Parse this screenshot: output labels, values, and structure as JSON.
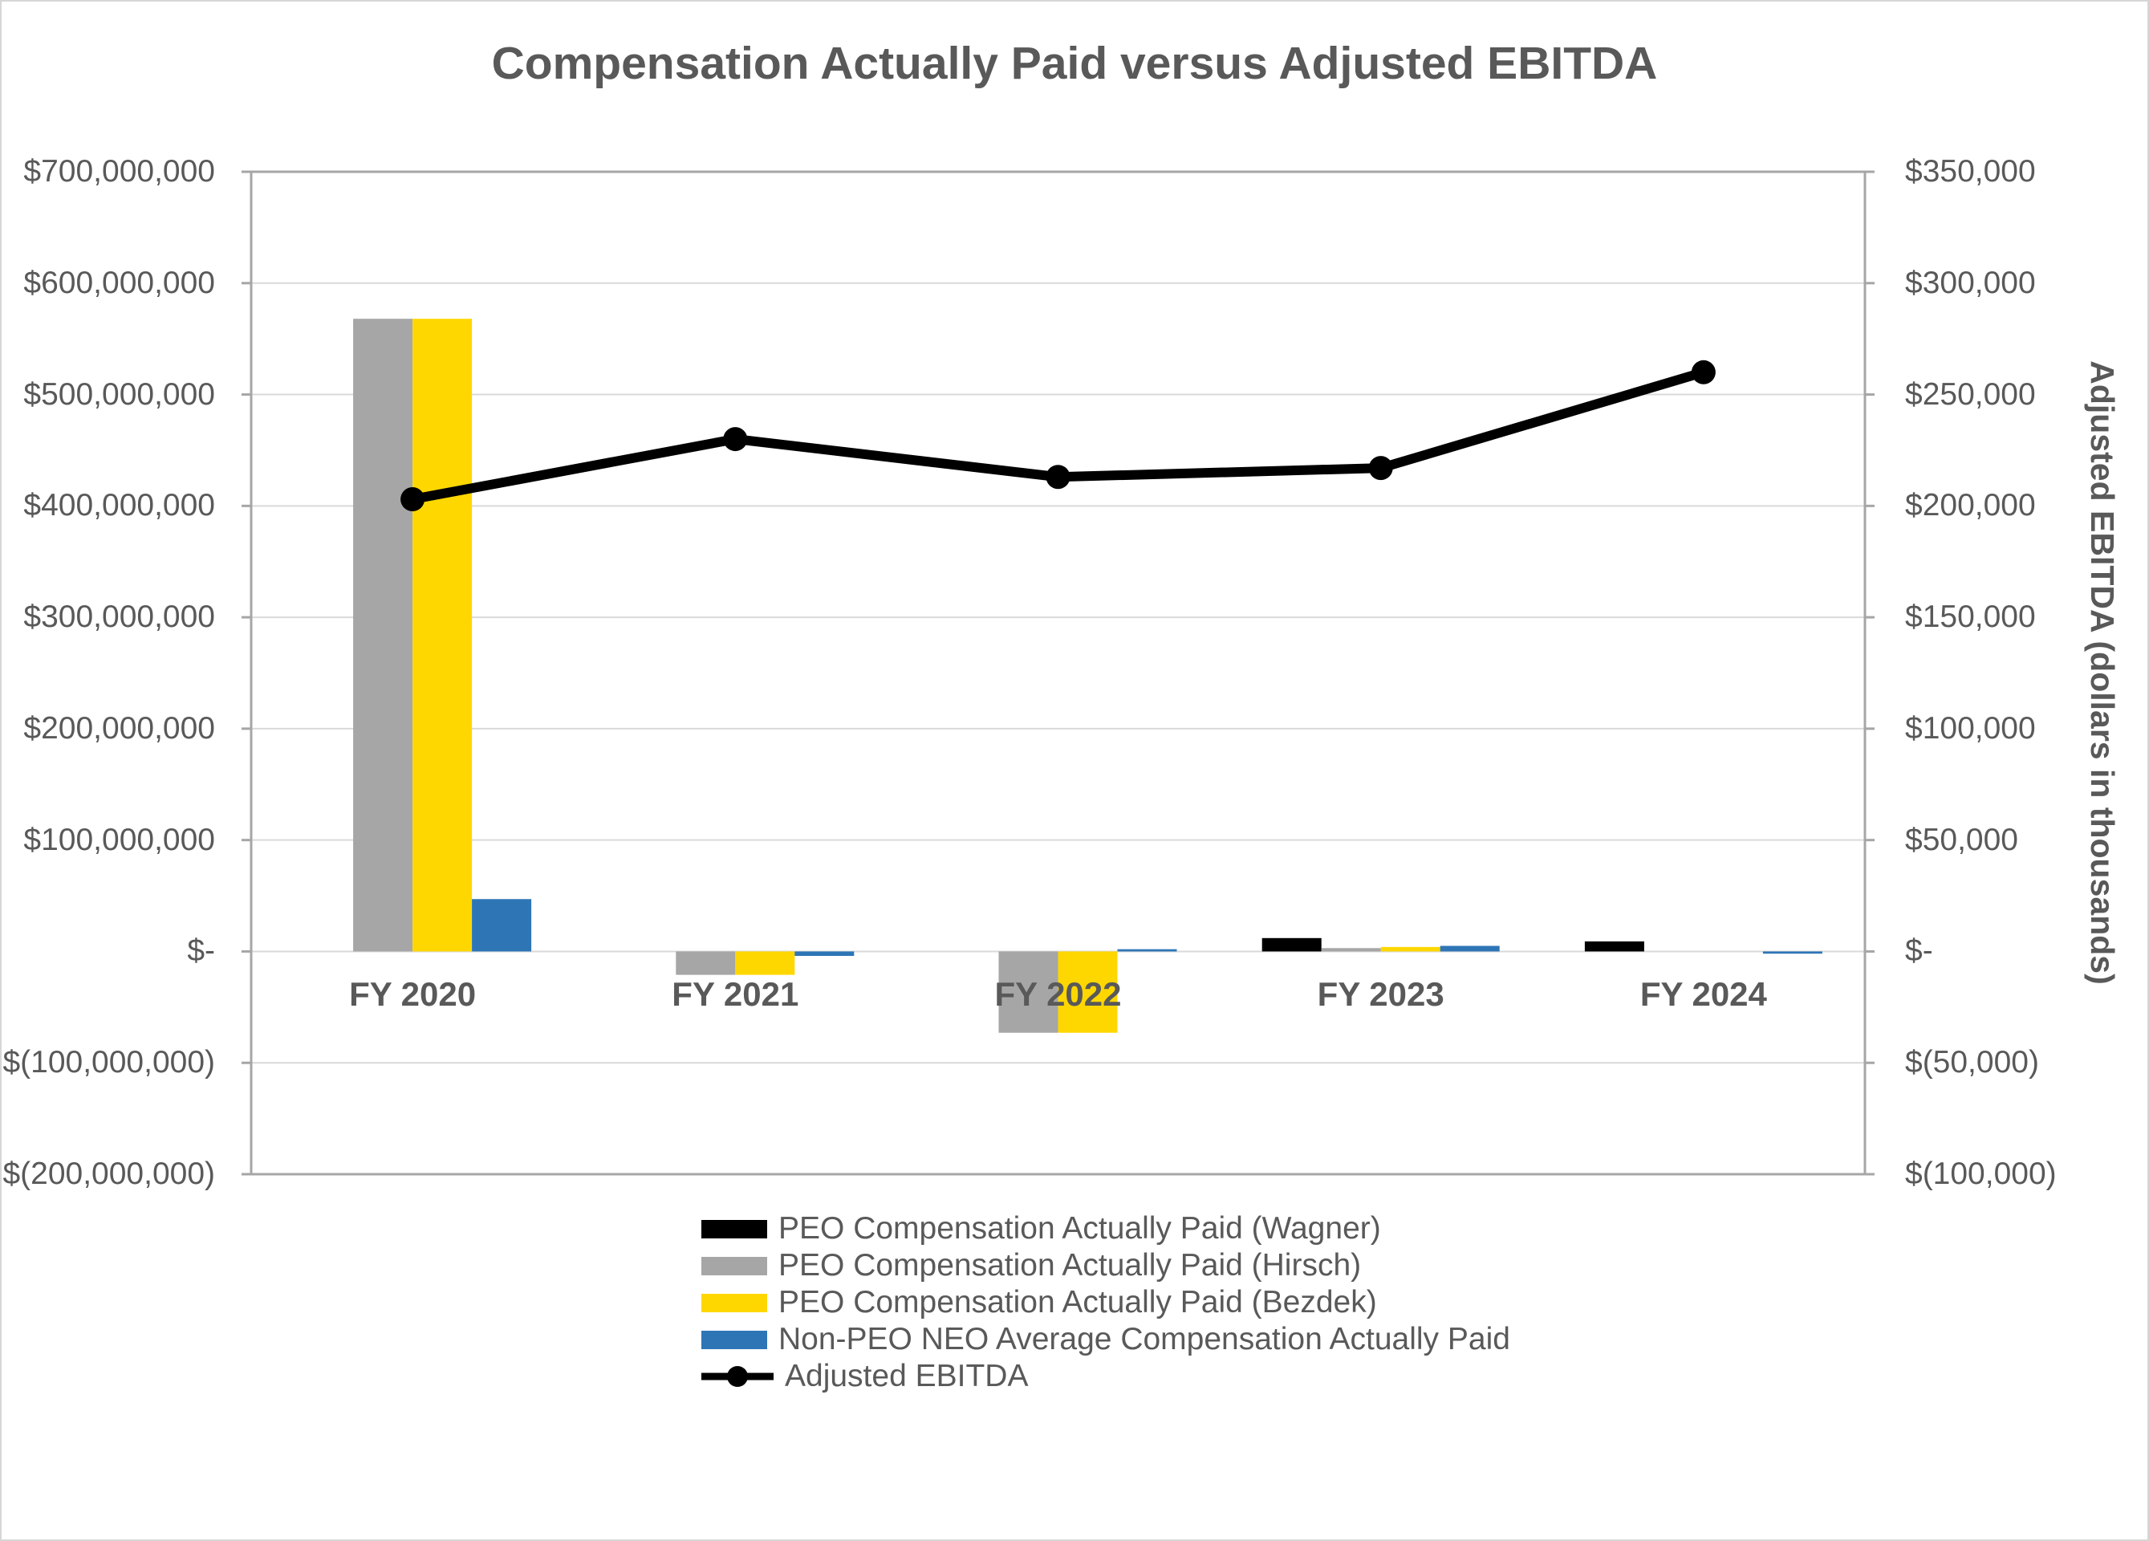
{
  "title": "Compensation Actually Paid versus Adjusted EBITDA",
  "right_axis_title": "Adjusted EBITDA (dollars in thousands)",
  "colors": {
    "text": "#595959",
    "gridline": "#d9d9d9",
    "plot_border": "#a6a6a6",
    "wagner_black": "#000000",
    "hirsch_gray": "#a6a6a6",
    "bezdek_yellow": "#ffd700",
    "non_peo_blue": "#2e75b6",
    "ebitda_line": "#000000"
  },
  "chart_data": {
    "type": "bar+line combo",
    "title": "Compensation Actually Paid versus Adjusted EBITDA",
    "categories": [
      "FY 2020",
      "FY 2021",
      "FY 2022",
      "FY 2023",
      "FY 2024"
    ],
    "grid": true,
    "legend_position": "bottom",
    "left_axis": {
      "min": -200000000,
      "max": 700000000,
      "step": 100000000,
      "tick_labels": [
        "$700,000,000",
        "$600,000,000",
        "$500,000,000",
        "$400,000,000",
        "$300,000,000",
        "$200,000,000",
        "$100,000,000",
        "$-",
        "$(100,000,000)",
        "$(200,000,000)"
      ]
    },
    "right_axis": {
      "min": -100000,
      "max": 350000,
      "step": 50000,
      "tick_labels": [
        "$350,000",
        "$300,000",
        "$250,000",
        "$200,000",
        "$150,000",
        "$100,000",
        "$50,000",
        "$-",
        "$(50,000)",
        "$(100,000)"
      ]
    },
    "series": [
      {
        "name": "PEO Compensation Actually Paid (Wagner)",
        "type": "bar",
        "axis": "left",
        "color": "#000000",
        "values": [
          0,
          0,
          0,
          12000000,
          9000000
        ]
      },
      {
        "name": "PEO Compensation Actually Paid (Hirsch)",
        "type": "bar",
        "axis": "left",
        "color": "#a6a6a6",
        "values": [
          568000000,
          -21000000,
          -73000000,
          3000000,
          0
        ]
      },
      {
        "name": "PEO Compensation Actually Paid (Bezdek)",
        "type": "bar",
        "axis": "left",
        "color": "#ffd700",
        "values": [
          568000000,
          -21000000,
          -73000000,
          4000000,
          0
        ]
      },
      {
        "name": "Non-PEO NEO Average Compensation Actually Paid",
        "type": "bar",
        "axis": "left",
        "color": "#2e75b6",
        "values": [
          47000000,
          -4000000,
          2000000,
          5000000,
          -2000000
        ]
      },
      {
        "name": "Adjusted EBITDA",
        "type": "line",
        "axis": "right",
        "color": "#000000",
        "values": [
          203000,
          230000,
          213000,
          217000,
          260000
        ]
      }
    ]
  }
}
